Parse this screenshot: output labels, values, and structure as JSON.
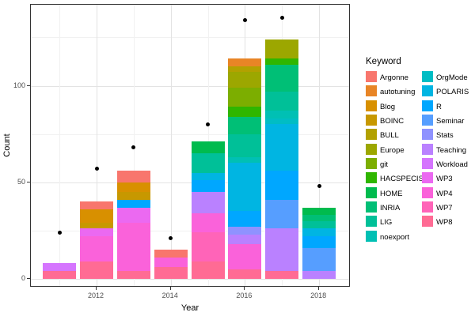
{
  "chart_data": {
    "type": "bar",
    "stacked": true,
    "title": "",
    "xlabel": "Year",
    "ylabel": "Count",
    "legend_title": "Keyword",
    "legend_position": "right",
    "grid": true,
    "x_ticks": [
      2012,
      2014,
      2016,
      2018
    ],
    "y_ticks": [
      0,
      50,
      100
    ],
    "y_minor_gridlines": [
      25,
      75,
      125
    ],
    "x_minor_gridlines": [
      2011,
      2013,
      2015,
      2017
    ],
    "ylim": [
      -4.5,
      142
    ],
    "years_shown": [
      2011,
      2012,
      2013,
      2014,
      2015,
      2016,
      2017,
      2018
    ],
    "keywords": [
      {
        "name": "Argonne",
        "color": "#F8766D"
      },
      {
        "name": "autotuning",
        "color": "#E88526"
      },
      {
        "name": "Blog",
        "color": "#D89000"
      },
      {
        "name": "BOINC",
        "color": "#C79800"
      },
      {
        "name": "BULL",
        "color": "#B2A100"
      },
      {
        "name": "Europe",
        "color": "#9CA700"
      },
      {
        "name": "git",
        "color": "#7CAE00"
      },
      {
        "name": "HACSPECIS",
        "color": "#2FB600"
      },
      {
        "name": "HOME",
        "color": "#00BB4E"
      },
      {
        "name": "INRIA",
        "color": "#00BF76"
      },
      {
        "name": "LIG",
        "color": "#00C098"
      },
      {
        "name": "noexport",
        "color": "#00C0B4"
      },
      {
        "name": "OrgMode",
        "color": "#00BDC4"
      },
      {
        "name": "POLARIS",
        "color": "#00B5E2"
      },
      {
        "name": "R",
        "color": "#00A7FF"
      },
      {
        "name": "Seminar",
        "color": "#569EFF"
      },
      {
        "name": "Stats",
        "color": "#8F92FF"
      },
      {
        "name": "Teaching",
        "color": "#BA81FF"
      },
      {
        "name": "Workload",
        "color": "#D575FE"
      },
      {
        "name": "WP3",
        "color": "#EB69F1"
      },
      {
        "name": "WP4",
        "color": "#FA62DA"
      },
      {
        "name": "WP7",
        "color": "#FF64B8"
      },
      {
        "name": "WP8",
        "color": "#FF6B94"
      }
    ],
    "bars": [
      {
        "year": 2011,
        "total": 8,
        "segments": {
          "Workload": 4,
          "WP8": 4
        }
      },
      {
        "year": 2012,
        "total": 40,
        "segments": {
          "Argonne": 4,
          "Blog": 7,
          "BOINC": 3,
          "WP3": 4,
          "WP4": 13,
          "WP8": 9
        }
      },
      {
        "year": 2013,
        "total": 56,
        "segments": {
          "Argonne": 6,
          "Blog": 5,
          "BOINC": 4,
          "R": 4,
          "WP3": 8,
          "WP4": 25,
          "WP8": 4
        }
      },
      {
        "year": 2014,
        "total": 15,
        "segments": {
          "Argonne": 4,
          "WP4": 5,
          "WP8": 6
        }
      },
      {
        "year": 2015,
        "total": 71,
        "segments": {
          "HOME": 6,
          "LIG": 10,
          "POLARIS": 4,
          "R": 6,
          "Teaching": 11,
          "WP4": 10,
          "WP7": 15,
          "WP8": 9
        }
      },
      {
        "year": 2016,
        "total": 114,
        "segments": {
          "autotuning": 4,
          "BULL": 3,
          "Europe": 8,
          "git": 10,
          "HACSPECIS": 5,
          "INRIA": 9,
          "LIG": 12,
          "noexport": 3,
          "POLARIS": 25,
          "R": 8,
          "Stats": 4,
          "Teaching": 5,
          "WP4": 13,
          "WP8": 5
        }
      },
      {
        "year": 2017,
        "total": 124,
        "segments": {
          "Europe": 10,
          "HACSPECIS": 3,
          "INRIA": 14,
          "LIG": 10,
          "noexport": 4,
          "OrgMode": 3,
          "POLARIS": 24,
          "R": 15,
          "Seminar": 15,
          "Teaching": 22,
          "WP8": 4
        }
      },
      {
        "year": 2018,
        "total": 37,
        "segments": {
          "HOME": 4,
          "INRIA": 3,
          "LIG": 4,
          "POLARIS": 4,
          "R": 6,
          "Seminar": 12,
          "Teaching": 4
        }
      }
    ],
    "points": [
      {
        "year": 2011,
        "value": 24
      },
      {
        "year": 2012,
        "value": 57
      },
      {
        "year": 2013,
        "value": 68
      },
      {
        "year": 2014,
        "value": 21
      },
      {
        "year": 2015,
        "value": 80
      },
      {
        "year": 2016,
        "value": 134
      },
      {
        "year": 2017,
        "value": 135
      },
      {
        "year": 2018,
        "value": 48
      }
    ]
  }
}
